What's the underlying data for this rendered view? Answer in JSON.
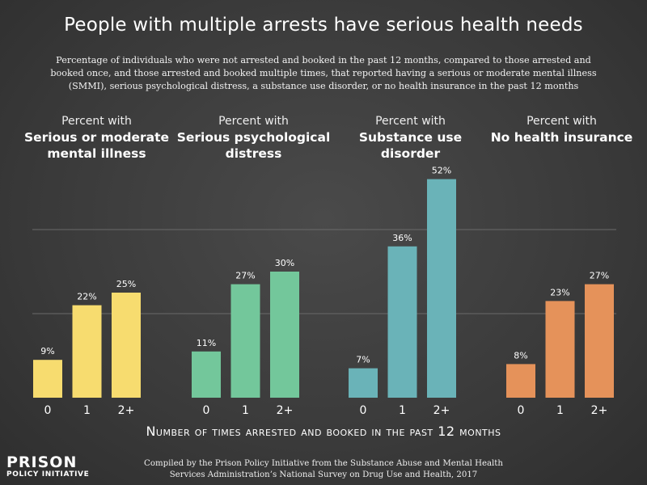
{
  "title": "People with multiple arrests have serious health needs",
  "subtitle": "Percentage of individuals who were not arrested and booked in the past 12 months, compared to those arrested and booked once, and those arrested and booked multiple times, that reported having a serious or moderate mental illness (SMMI), serious psychological distress, a substance use disorder, or no health insurance in the past 12 months",
  "panels": [
    {
      "pre": "Percent with",
      "main": "Serious or moderate\nmental illness"
    },
    {
      "pre": "Percent with",
      "main": "Serious psychological\ndistress"
    },
    {
      "pre": "Percent with",
      "main": "Substance use\ndisorder"
    },
    {
      "pre": "Percent with",
      "main": "No health insurance"
    }
  ],
  "xlabel": "Number of times arrested and booked in the past 12 months",
  "source": "Compiled by the Prison Policy Initiative from the Substance Abuse and Mental Health Services Administration’s National Survey on Drug Use and Health, 2017",
  "logo": {
    "line1": "PRISON",
    "line2": "POLICY INITIATIVE"
  },
  "colors": {
    "mental_illness": "#f7dc6f",
    "psych_distress": "#73c79b",
    "substance_use": "#6ab3b8",
    "no_insurance": "#e5925a",
    "gridline": "#6a6a6a"
  },
  "chart_data": {
    "type": "bar",
    "categories": [
      "0",
      "1",
      "2+"
    ],
    "ylim": [
      0,
      60
    ],
    "grid": true,
    "series": [
      {
        "name": "Serious or moderate mental illness",
        "values": [
          9,
          22,
          25
        ],
        "labels": [
          "9%",
          "22%",
          "25%"
        ],
        "color": "#f7dc6f"
      },
      {
        "name": "Serious psychological distress",
        "values": [
          11,
          27,
          30
        ],
        "labels": [
          "11%",
          "27%",
          "30%"
        ],
        "color": "#73c79b"
      },
      {
        "name": "Substance use disorder",
        "values": [
          7,
          36,
          52
        ],
        "labels": [
          "7%",
          "36%",
          "52%"
        ],
        "color": "#6ab3b8"
      },
      {
        "name": "No health insurance",
        "values": [
          8,
          23,
          27
        ],
        "labels": [
          "8%",
          "23%",
          "27%"
        ],
        "color": "#e5925a"
      }
    ]
  }
}
